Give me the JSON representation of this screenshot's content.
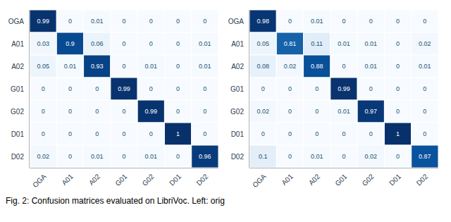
{
  "chart_data": [
    {
      "type": "heatmap",
      "categories": [
        "OGA",
        "A01",
        "A02",
        "G01",
        "G02",
        "D01",
        "D02"
      ],
      "cells": [
        [
          0.99,
          0,
          0.01,
          0,
          0,
          0,
          0
        ],
        [
          0.03,
          0.9,
          0.06,
          0,
          0,
          0,
          0.01
        ],
        [
          0.05,
          0.01,
          0.93,
          0,
          0.01,
          0,
          0.01
        ],
        [
          0,
          0,
          0,
          0.99,
          0,
          0,
          0
        ],
        [
          0,
          0,
          0,
          0,
          0.99,
          0,
          0
        ],
        [
          0,
          0,
          0,
          0,
          0,
          1,
          0
        ],
        [
          0.02,
          0,
          0.01,
          0,
          0.01,
          0,
          0.96
        ]
      ],
      "color": "Blues",
      "color_range": [
        0,
        1
      ],
      "data_labels": true,
      "annotations": [
        "Fig. 2: Confusion matrices evaluated on LibriVoc. Left: orig"
      ]
    },
    {
      "type": "heatmap",
      "categories": [
        "OGA",
        "A01",
        "A02",
        "G01",
        "G02",
        "D01",
        "D02"
      ],
      "cells": [
        [
          0.98,
          0,
          0.01,
          0,
          0,
          0,
          0
        ],
        [
          0.05,
          0.81,
          0.11,
          0.01,
          0.01,
          0,
          0.02
        ],
        [
          0.08,
          0.02,
          0.88,
          0,
          0.01,
          0,
          0.01
        ],
        [
          0,
          0,
          0,
          0.99,
          0,
          0,
          0
        ],
        [
          0.02,
          0,
          0,
          0.01,
          0.97,
          0,
          0
        ],
        [
          0,
          0,
          0,
          0,
          0,
          1,
          0
        ],
        [
          0.1,
          0,
          0.01,
          0,
          0.02,
          0,
          0.87
        ]
      ],
      "color": "Blues",
      "color_range": [
        0,
        1
      ],
      "data_labels": true
    }
  ]
}
